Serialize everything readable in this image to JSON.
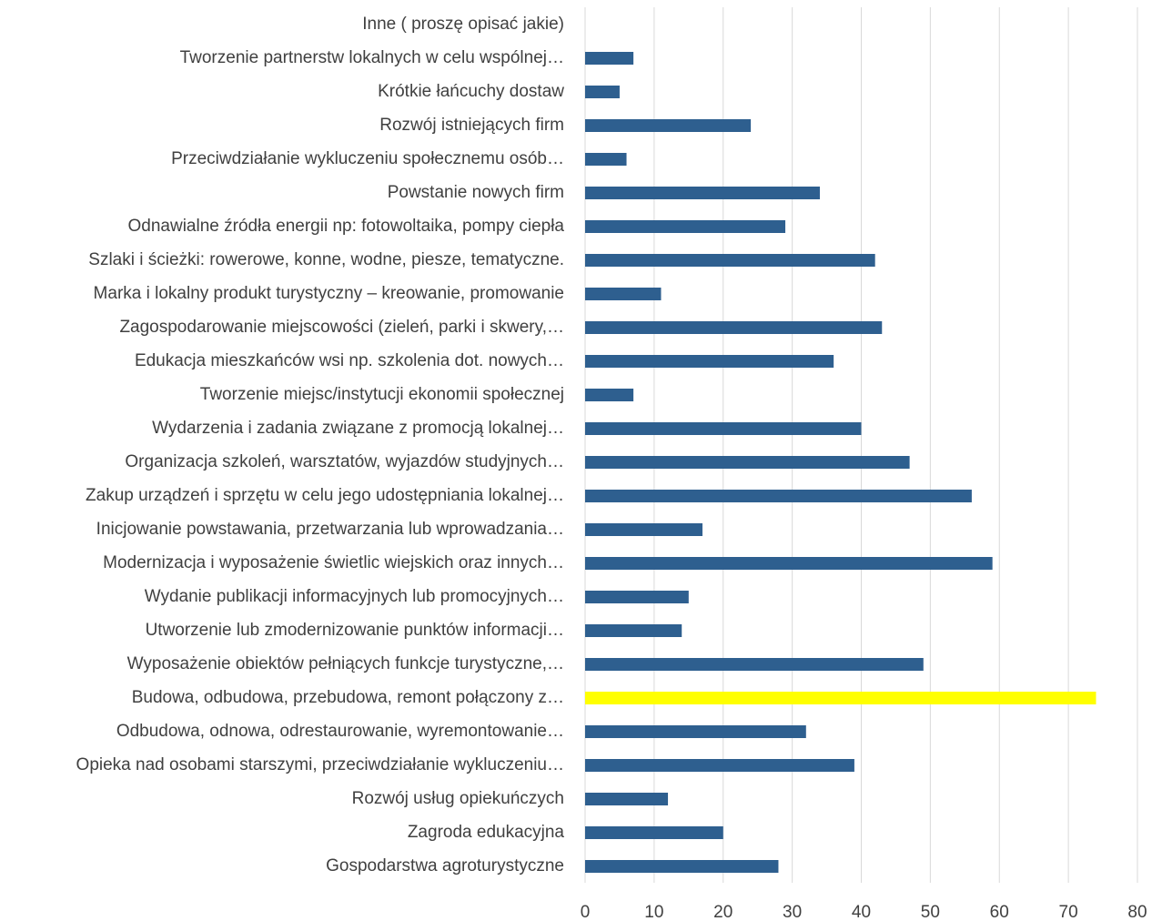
{
  "chart_data": {
    "type": "barh",
    "categories": [
      "Inne ( proszę opisać jakie)",
      "Tworzenie partnerstw lokalnych w celu wspólnej…",
      "Krótkie łańcuchy dostaw",
      "Rozwój istniejących firm",
      "Przeciwdziałanie wykluczeniu społecznemu osób…",
      "Powstanie nowych firm",
      "Odnawialne źródła energii np: fotowoltaika, pompy ciepła",
      "Szlaki i ścieżki: rowerowe, konne, wodne, piesze, tematyczne.",
      "Marka i lokalny produkt turystyczny – kreowanie, promowanie",
      "Zagospodarowanie miejscowości (zieleń, parki i skwery,…",
      "Edukacja mieszkańców wsi np. szkolenia dot. nowych…",
      "Tworzenie miejsc/instytucji ekonomii społecznej",
      "Wydarzenia i zadania związane z promocją lokalnej…",
      "Organizacja szkoleń, warsztatów, wyjazdów studyjnych…",
      "Zakup urządzeń i sprzętu  w celu jego udostępniania lokalnej…",
      "Inicjowanie powstawania, przetwarzania lub wprowadzania…",
      "Modernizacja i wyposażenie świetlic wiejskich oraz innych…",
      "Wydanie publikacji informacyjnych lub promocyjnych…",
      "Utworzenie lub zmodernizowanie punktów informacji…",
      "Wyposażenie obiektów pełniących funkcje turystyczne,…",
      "Budowa, odbudowa, przebudowa, remont połączony z…",
      "Odbudowa, odnowa, odrestaurowanie, wyremontowanie…",
      "Opieka nad osobami starszymi, przeciwdziałanie wykluczeniu…",
      "Rozwój usług opiekuńczych",
      "Zagroda edukacyjna",
      "Gospodarstwa agroturystyczne"
    ],
    "values": [
      0,
      7,
      5,
      24,
      6,
      34,
      29,
      42,
      11,
      43,
      36,
      7,
      40,
      47,
      56,
      17,
      59,
      15,
      14,
      49,
      74,
      32,
      39,
      12,
      20,
      28
    ],
    "colors": [
      "#2e5f8f",
      "#2e5f8f",
      "#2e5f8f",
      "#2e5f8f",
      "#2e5f8f",
      "#2e5f8f",
      "#2e5f8f",
      "#2e5f8f",
      "#2e5f8f",
      "#2e5f8f",
      "#2e5f8f",
      "#2e5f8f",
      "#2e5f8f",
      "#2e5f8f",
      "#2e5f8f",
      "#2e5f8f",
      "#2e5f8f",
      "#2e5f8f",
      "#2e5f8f",
      "#2e5f8f",
      "#ffff00",
      "#2e5f8f",
      "#2e5f8f",
      "#2e5f8f",
      "#2e5f8f",
      "#2e5f8f"
    ],
    "xlim": [
      0,
      80
    ],
    "xticks": [
      0,
      10,
      20,
      30,
      40,
      50,
      60,
      70,
      80
    ],
    "grid": true
  }
}
